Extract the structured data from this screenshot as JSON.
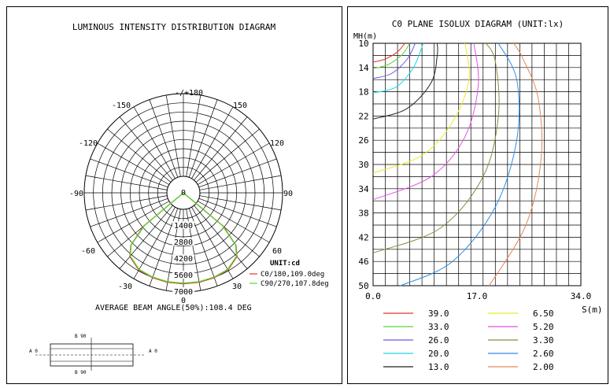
{
  "left": {
    "title": "LUMINOUS INTENSITY DISTRIBUTION DIAGRAM",
    "angle_labels": {
      "top": "-/+180",
      "left150": "-150",
      "right150": "150",
      "left120": "-120",
      "right120": "120",
      "left90": "-90",
      "right90": "90",
      "left60": "-60",
      "right60": "60",
      "left30": "-30",
      "right30": "30",
      "bottom": "0"
    },
    "radial_labels": [
      "0",
      "1400",
      "2800",
      "4200",
      "5600",
      "7000"
    ],
    "unit": "UNIT:cd",
    "legend": [
      {
        "label": "C0/180,109.0deg",
        "color": "#e8332b"
      },
      {
        "label": "C90/270,107.8deg",
        "color": "#5cd43c"
      }
    ],
    "beam_angle": "AVERAGE BEAM ANGLE(50%):108.4 DEG",
    "schematic": {
      "b90_top": "B 90",
      "b90_bottom": "B 90",
      "a0_left": "A 0",
      "a0_right": "A 0"
    }
  },
  "right": {
    "title": "C0 PLANE ISOLUX DIAGRAM (UNIT:lx)",
    "ylabel": "MH(m)",
    "xlabel": "S(m)",
    "y_ticks": [
      "10",
      "14",
      "18",
      "22",
      "26",
      "30",
      "34",
      "38",
      "42",
      "46",
      "50"
    ],
    "x_ticks": [
      "0.0",
      "17.0",
      "34.0"
    ],
    "legend": [
      {
        "value": "39.0",
        "color": "#e8332b"
      },
      {
        "value": "33.0",
        "color": "#5cd43c"
      },
      {
        "value": "26.0",
        "color": "#6a5ae8"
      },
      {
        "value": "20.0",
        "color": "#22d8e6"
      },
      {
        "value": "13.0",
        "color": "#222222"
      },
      {
        "value": "6.50",
        "color": "#eaea2e"
      },
      {
        "value": "5.20",
        "color": "#e84fe0"
      },
      {
        "value": "3.30",
        "color": "#8c8a3a"
      },
      {
        "value": "2.60",
        "color": "#2c8ee8"
      },
      {
        "value": "2.00",
        "color": "#e8875a"
      }
    ]
  },
  "chart_data": [
    {
      "type": "polar",
      "title": "LUMINOUS INTENSITY DISTRIBUTION DIAGRAM",
      "unit": "cd",
      "r_range": [
        0,
        7000
      ],
      "radial_ticks": [
        0,
        1400,
        2800,
        4200,
        5600,
        7000
      ],
      "angle_ticks": [
        -180,
        -150,
        -120,
        -90,
        -60,
        -30,
        0,
        30,
        60,
        90,
        120,
        150,
        180
      ],
      "series": [
        {
          "name": "C0/180,109.0deg",
          "color": "#e8332b",
          "angles": [
            -55,
            -50,
            -45,
            -40,
            -30,
            -20,
            -10,
            0,
            10,
            20,
            30,
            40,
            45,
            50,
            55
          ],
          "intensity": [
            0,
            3000,
            4900,
            5650,
            6150,
            6250,
            6300,
            6300,
            6300,
            6250,
            6150,
            5650,
            4900,
            3000,
            0
          ]
        },
        {
          "name": "C90/270,107.8deg",
          "color": "#5cd43c",
          "angles": [
            -55,
            -50,
            -45,
            -40,
            -30,
            -20,
            -10,
            0,
            10,
            20,
            30,
            40,
            45,
            50,
            55
          ],
          "intensity": [
            0,
            2900,
            4850,
            5600,
            6100,
            6200,
            6250,
            6250,
            6250,
            6200,
            6100,
            5600,
            4850,
            2900,
            0
          ]
        }
      ],
      "beam_angle_avg_deg": 108.4
    },
    {
      "type": "contour",
      "title": "C0 PLANE ISOLUX DIAGRAM (UNIT:lx)",
      "xlabel": "S(m)",
      "ylabel": "MH(m)",
      "xlim": [
        0,
        34
      ],
      "ylim": [
        10,
        50
      ],
      "series": [
        {
          "name": "39.0",
          "color": "#e8332b",
          "points": [
            [
              0,
              13.1
            ],
            [
              2,
              12.6
            ],
            [
              4,
              11.4
            ],
            [
              5.2,
              10
            ]
          ]
        },
        {
          "name": "33.0",
          "color": "#5cd43c",
          "points": [
            [
              0,
              14.2
            ],
            [
              2.5,
              13.5
            ],
            [
              4.8,
              11.8
            ],
            [
              6,
              10
            ]
          ]
        },
        {
          "name": "26.0",
          "color": "#6a5ae8",
          "points": [
            [
              0,
              15.8
            ],
            [
              3,
              15
            ],
            [
              5.6,
              12.6
            ],
            [
              6.9,
              10
            ]
          ]
        },
        {
          "name": "20.0",
          "color": "#22d8e6",
          "points": [
            [
              0,
              18.2
            ],
            [
              3.8,
              17.2
            ],
            [
              6.6,
              14
            ],
            [
              8.2,
              10
            ]
          ]
        },
        {
          "name": "13.0",
          "color": "#222222",
          "points": [
            [
              0,
              22.5
            ],
            [
              5.5,
              20.8
            ],
            [
              9.5,
              16.5
            ],
            [
              10.5,
              12
            ],
            [
              10.5,
              10
            ]
          ]
        },
        {
          "name": "6.50",
          "color": "#eaea2e",
          "points": [
            [
              0,
              31.4
            ],
            [
              8,
              28.5
            ],
            [
              13,
              23
            ],
            [
              15.7,
              16
            ],
            [
              15,
              10
            ]
          ]
        },
        {
          "name": "5.20",
          "color": "#e84fe0",
          "points": [
            [
              0,
              35.8
            ],
            [
              9.5,
              32
            ],
            [
              15,
              25.5
            ],
            [
              17.2,
              17
            ],
            [
              16.5,
              10
            ]
          ]
        },
        {
          "name": "3.30",
          "color": "#8c8a3a",
          "points": [
            [
              0,
              44.6
            ],
            [
              11,
              40.5
            ],
            [
              18,
              32
            ],
            [
              20.5,
              22
            ],
            [
              20,
              13
            ],
            [
              18.5,
              10
            ]
          ]
        },
        {
          "name": "2.60",
          "color": "#2c8ee8",
          "points": [
            [
              4.5,
              50
            ],
            [
              13,
              46
            ],
            [
              20,
              37
            ],
            [
              23.5,
              26
            ],
            [
              23.5,
              16
            ],
            [
              20.5,
              10
            ]
          ]
        },
        {
          "name": "2.00",
          "color": "#e8875a",
          "points": [
            [
              19,
              50
            ],
            [
              25,
              40
            ],
            [
              27.5,
              29
            ],
            [
              27,
              19
            ],
            [
              24.5,
              12.5
            ],
            [
              23,
              10
            ]
          ]
        }
      ]
    }
  ]
}
